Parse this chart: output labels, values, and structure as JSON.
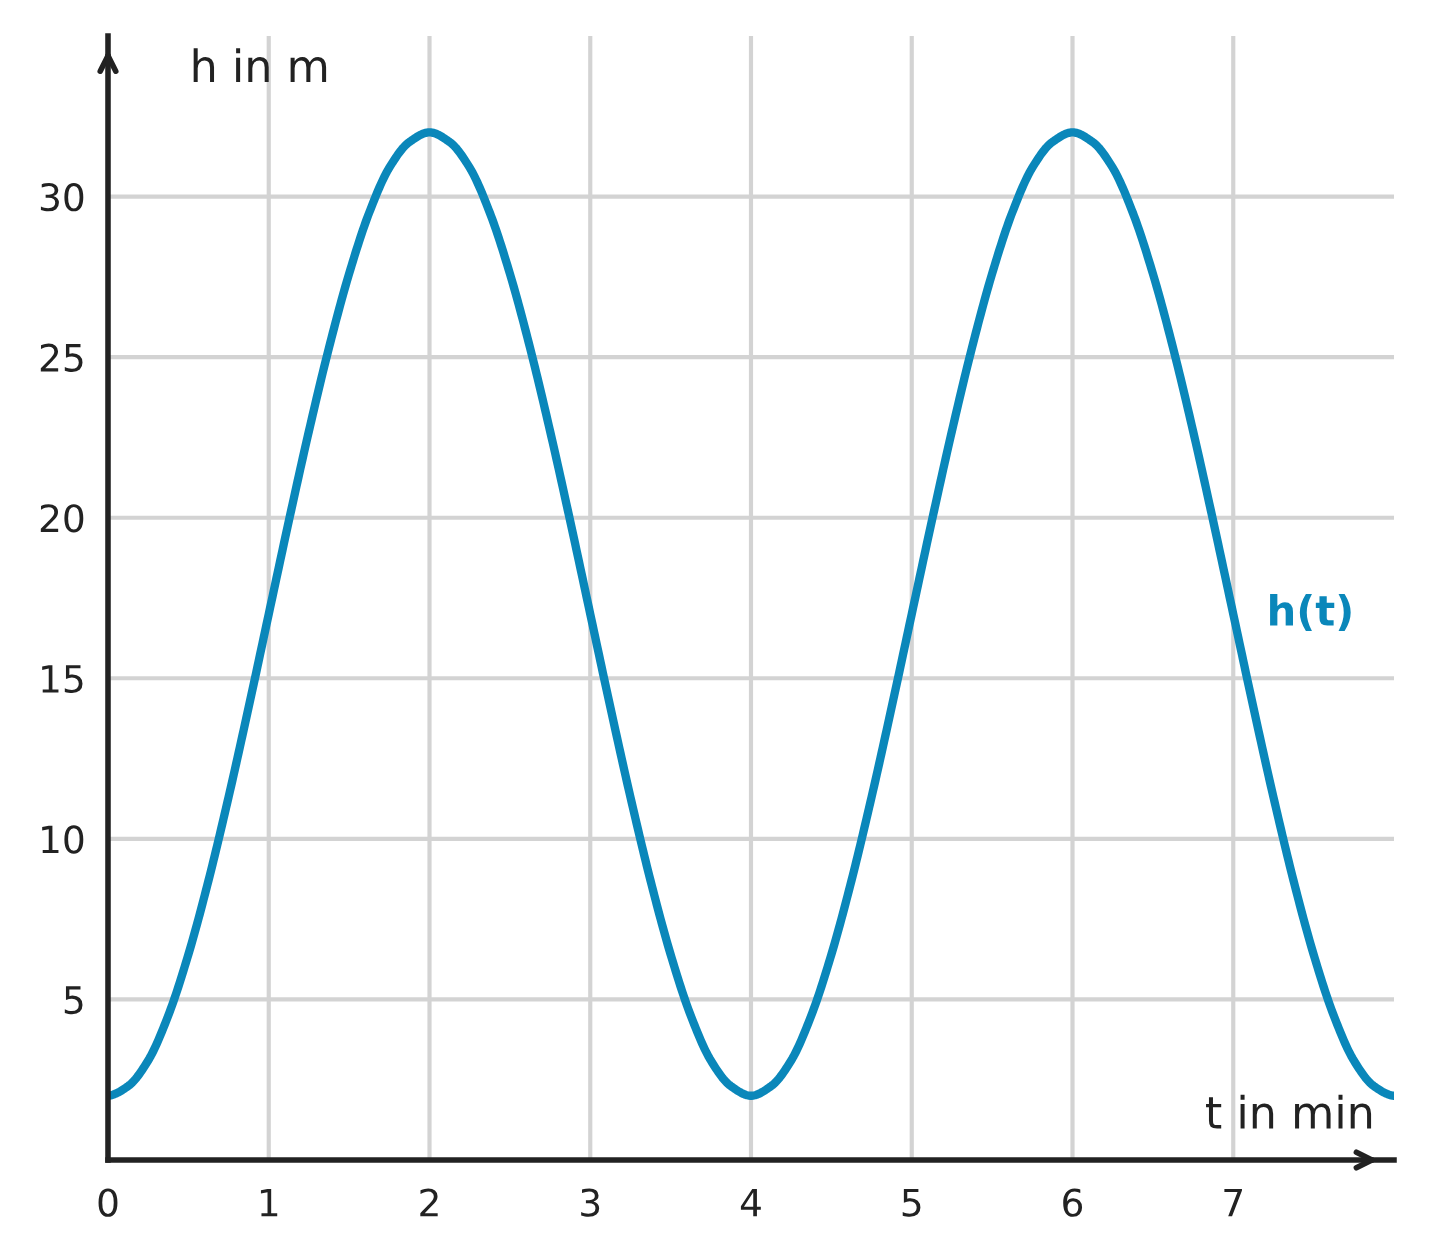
{
  "chart_data": {
    "type": "line",
    "xlabel": "t in min",
    "ylabel": "h in m",
    "xlim": [
      0,
      8
    ],
    "ylim": [
      0,
      35
    ],
    "xticks": [
      {
        "value": 0,
        "label": "0"
      },
      1,
      2,
      3,
      4,
      5,
      6,
      7
    ],
    "yticks": [
      5,
      10,
      15,
      20,
      25,
      30
    ],
    "grid": true,
    "series": [
      {
        "name": "h(t)",
        "color": "#0a87ba",
        "x": [
          0,
          0.125,
          0.25,
          0.375,
          0.5,
          0.625,
          0.75,
          0.875,
          1,
          1.125,
          1.25,
          1.375,
          1.5,
          1.625,
          1.75,
          1.875,
          2,
          2.125,
          2.25,
          2.375,
          2.5,
          2.625,
          2.75,
          2.875,
          3,
          3.125,
          3.25,
          3.375,
          3.5,
          3.625,
          3.75,
          3.875,
          4,
          4.125,
          4.25,
          4.375,
          4.5,
          4.625,
          4.75,
          4.875,
          5,
          5.125,
          5.25,
          5.375,
          5.5,
          5.625,
          5.75,
          5.875,
          6,
          6.125,
          6.25,
          6.375,
          6.5,
          6.625,
          6.75,
          6.875,
          7,
          7.125,
          7.25,
          7.375,
          7.5,
          7.625,
          7.75,
          7.875,
          8
        ],
        "values": [
          2,
          2.3,
          3.1,
          4.5,
          6.4,
          8.7,
          11.3,
          14.1,
          17,
          19.9,
          22.7,
          25.3,
          27.6,
          29.5,
          30.9,
          31.7,
          32,
          31.7,
          30.9,
          29.5,
          27.6,
          25.3,
          22.7,
          19.9,
          17,
          14.1,
          11.3,
          8.7,
          6.4,
          4.5,
          3.1,
          2.3,
          2,
          2.3,
          3.1,
          4.5,
          6.4,
          8.7,
          11.3,
          14.1,
          17,
          19.9,
          22.7,
          25.3,
          27.6,
          29.5,
          30.9,
          31.7,
          32,
          31.7,
          30.9,
          29.5,
          27.6,
          25.3,
          22.7,
          19.9,
          17,
          14.1,
          11.3,
          8.7,
          6.4,
          4.5,
          3.1,
          2.3,
          2
        ]
      }
    ]
  }
}
